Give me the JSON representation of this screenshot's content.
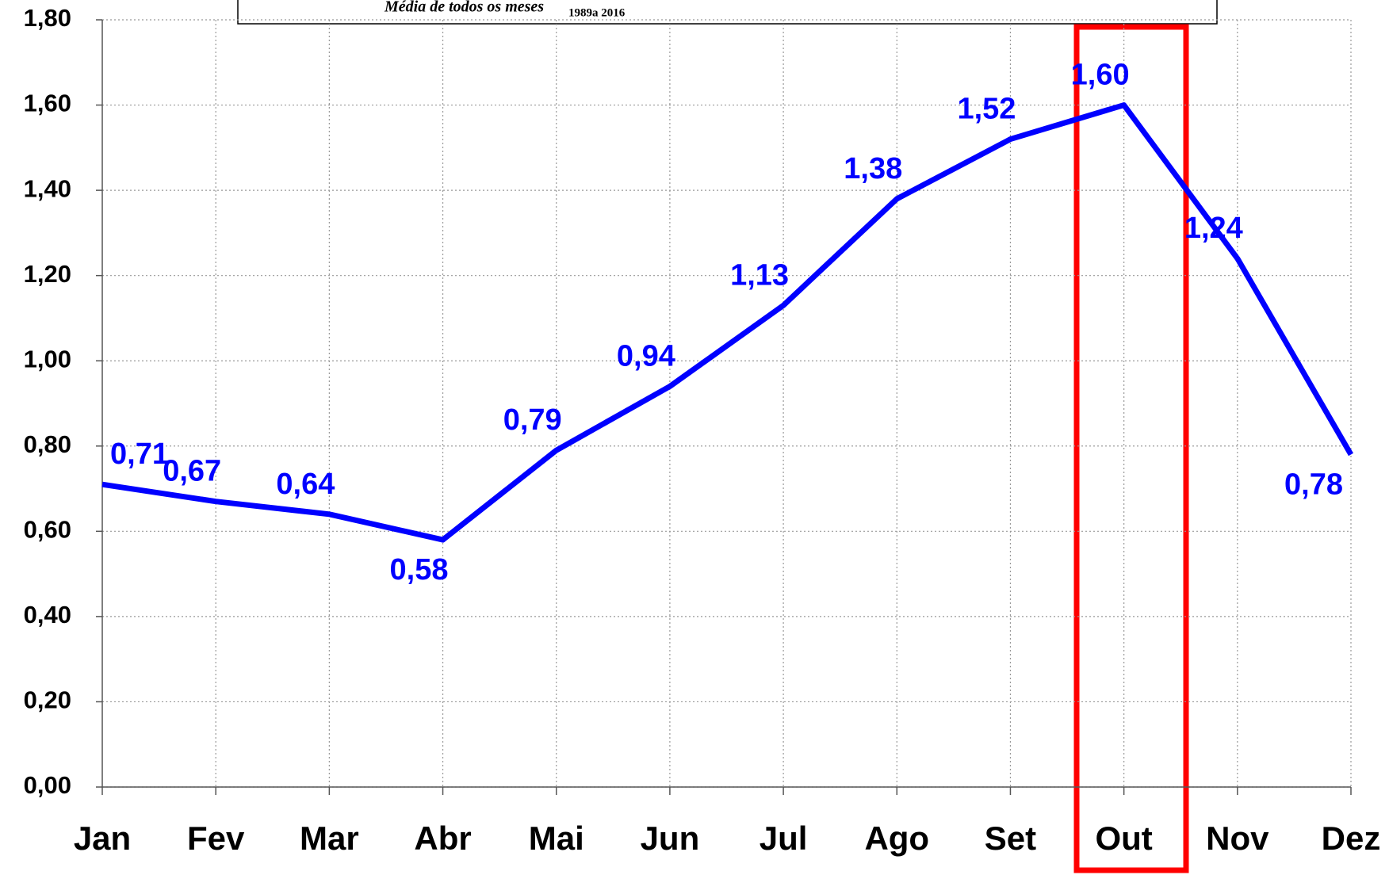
{
  "chart_data": {
    "type": "line",
    "annotation": "Média de todos os meses",
    "annotation_subscript": "1989a 2016",
    "categories": [
      "Jan",
      "Fev",
      "Mar",
      "Abr",
      "Mai",
      "Jun",
      "Jul",
      "Ago",
      "Set",
      "Out",
      "Nov",
      "Dez"
    ],
    "series": [
      {
        "color": "#0000ff",
        "values": [
          0.71,
          0.67,
          0.64,
          0.58,
          0.79,
          0.94,
          1.13,
          1.38,
          1.52,
          1.6,
          1.24,
          0.78
        ],
        "value_labels": [
          "0,71",
          "0,67",
          "0,64",
          "0,58",
          "0,79",
          "0,94",
          "1,13",
          "1,38",
          "1,52",
          "1,60",
          "1,24",
          "0,78"
        ]
      }
    ],
    "ylim": [
      0,
      1.8
    ],
    "yticks": [
      {
        "value": 0,
        "label": "0,00"
      },
      {
        "value": 0.2,
        "label": "0,20"
      },
      {
        "value": 0.4,
        "label": "0,40"
      },
      {
        "value": 0.6,
        "label": "0,60"
      },
      {
        "value": 0.8,
        "label": "0,80"
      },
      {
        "value": 1.0,
        "label": "1,00"
      },
      {
        "value": 1.2,
        "label": "1,20"
      },
      {
        "value": 1.4,
        "label": "1,40"
      },
      {
        "value": 1.6,
        "label": "1,60"
      },
      {
        "value": 1.8,
        "label": "1,80"
      }
    ],
    "grid": true
  }
}
